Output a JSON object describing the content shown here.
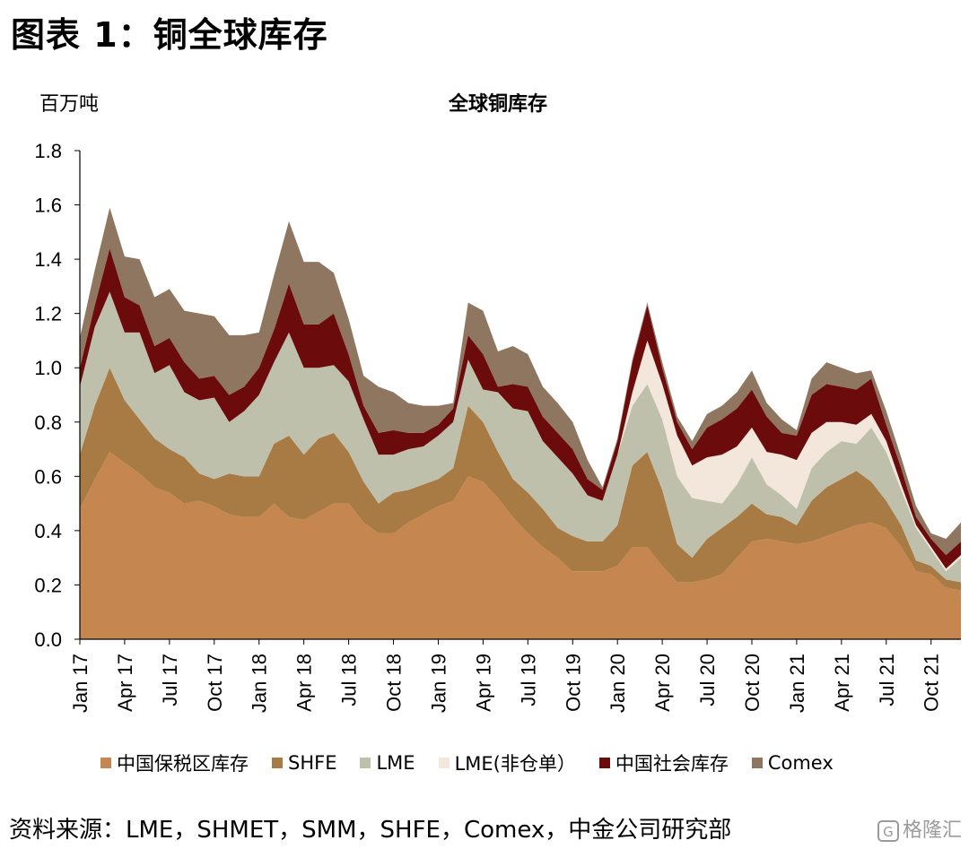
{
  "header": {
    "figure_title": "图表 1：铜全球库存",
    "unit_label": "百万吨",
    "chart_title": "全球铜库存"
  },
  "legend": [
    {
      "label": "中国保税区库存",
      "color": "#C5864F"
    },
    {
      "label": "SHFE",
      "color": "#A87A44"
    },
    {
      "label": "LME",
      "color": "#BFC0AC"
    },
    {
      "label": "LME(非仓单）",
      "color": "#F2E7DA"
    },
    {
      "label": "中国社会库存",
      "color": "#6B0B0B"
    },
    {
      "label": "Comex",
      "color": "#8E7660"
    }
  ],
  "footer": {
    "source": "资料来源：LME，SHMET，SMM，SHFE，Comex，中金公司研究部",
    "watermark": "格隆汇"
  },
  "chart_data": {
    "type": "area",
    "stacked": true,
    "title": "全球铜库存",
    "ylabel": "百万吨",
    "ylim": [
      0,
      1.8
    ],
    "yticks": [
      0.0,
      0.2,
      0.4,
      0.6,
      0.8,
      1.0,
      1.2,
      1.4,
      1.6,
      1.8
    ],
    "ytick_labels": [
      "0.0",
      "0.2",
      "0.4",
      "0.6",
      "0.8",
      "1.0",
      "1.2",
      "1.4",
      "1.6",
      "1.8"
    ],
    "x_tick_labels": [
      "Jan 17",
      "Apr 17",
      "Jul 17",
      "Oct 17",
      "Jan 18",
      "Apr 18",
      "Jul 18",
      "Oct 18",
      "Jan 19",
      "Apr 19",
      "Jul 19",
      "Oct 19",
      "Jan 20",
      "Apr 20",
      "Jul 20",
      "Oct 20",
      "Jan 21",
      "Apr 21",
      "Jul 21",
      "Oct 21"
    ],
    "x_start": "2017-01",
    "x_end": "2021-12",
    "grid": false,
    "legend_position": "bottom",
    "series": [
      {
        "name": "中国保税区库存",
        "color": "#C5864F",
        "values": [
          0.48,
          0.59,
          0.69,
          0.65,
          0.61,
          0.56,
          0.54,
          0.5,
          0.51,
          0.49,
          0.46,
          0.45,
          0.45,
          0.5,
          0.45,
          0.44,
          0.47,
          0.5,
          0.5,
          0.43,
          0.39,
          0.39,
          0.43,
          0.46,
          0.49,
          0.51,
          0.6,
          0.58,
          0.52,
          0.45,
          0.39,
          0.34,
          0.3,
          0.25,
          0.25,
          0.25,
          0.27,
          0.34,
          0.34,
          0.27,
          0.21,
          0.21,
          0.22,
          0.24,
          0.3,
          0.36,
          0.37,
          0.36,
          0.35,
          0.36,
          0.38,
          0.4,
          0.42,
          0.43,
          0.41,
          0.34,
          0.25,
          0.24,
          0.19,
          0.18
        ]
      },
      {
        "name": "SHFE",
        "color": "#A87A44",
        "values": [
          0.2,
          0.27,
          0.31,
          0.23,
          0.2,
          0.18,
          0.16,
          0.17,
          0.1,
          0.1,
          0.15,
          0.15,
          0.15,
          0.22,
          0.3,
          0.24,
          0.27,
          0.26,
          0.19,
          0.15,
          0.11,
          0.15,
          0.12,
          0.11,
          0.1,
          0.12,
          0.26,
          0.22,
          0.17,
          0.14,
          0.15,
          0.14,
          0.11,
          0.13,
          0.11,
          0.11,
          0.15,
          0.3,
          0.35,
          0.28,
          0.14,
          0.09,
          0.15,
          0.17,
          0.15,
          0.14,
          0.09,
          0.09,
          0.07,
          0.15,
          0.18,
          0.19,
          0.2,
          0.15,
          0.1,
          0.08,
          0.04,
          0.03,
          0.03,
          0.03
        ]
      },
      {
        "name": "LME",
        "color": "#BFC0AC",
        "values": [
          0.25,
          0.29,
          0.28,
          0.25,
          0.32,
          0.24,
          0.31,
          0.24,
          0.27,
          0.3,
          0.19,
          0.24,
          0.3,
          0.3,
          0.38,
          0.32,
          0.26,
          0.25,
          0.26,
          0.23,
          0.18,
          0.14,
          0.15,
          0.14,
          0.16,
          0.17,
          0.17,
          0.12,
          0.22,
          0.26,
          0.3,
          0.25,
          0.26,
          0.23,
          0.17,
          0.15,
          0.26,
          0.22,
          0.25,
          0.26,
          0.25,
          0.22,
          0.14,
          0.09,
          0.12,
          0.17,
          0.11,
          0.08,
          0.06,
          0.12,
          0.13,
          0.14,
          0.1,
          0.2,
          0.18,
          0.13,
          0.12,
          0.06,
          0.03,
          0.09
        ]
      },
      {
        "name": "LME(非仓单）",
        "color": "#F2E7DA",
        "values": [
          0.0,
          0.0,
          0.0,
          0.0,
          0.0,
          0.0,
          0.0,
          0.0,
          0.0,
          0.0,
          0.0,
          0.0,
          0.0,
          0.0,
          0.0,
          0.0,
          0.0,
          0.0,
          0.0,
          0.0,
          0.0,
          0.0,
          0.0,
          0.0,
          0.0,
          0.0,
          0.0,
          0.0,
          0.0,
          0.0,
          0.0,
          0.0,
          0.0,
          0.0,
          0.0,
          0.0,
          0.0,
          0.05,
          0.16,
          0.13,
          0.15,
          0.12,
          0.16,
          0.18,
          0.14,
          0.11,
          0.12,
          0.15,
          0.18,
          0.13,
          0.11,
          0.07,
          0.07,
          0.05,
          0.04,
          0.02,
          0.01,
          0.01,
          0.01,
          0.01
        ]
      },
      {
        "name": "中国社会库存",
        "color": "#6B0B0B",
        "values": [
          0.07,
          0.08,
          0.16,
          0.13,
          0.1,
          0.1,
          0.1,
          0.11,
          0.08,
          0.08,
          0.1,
          0.09,
          0.1,
          0.12,
          0.18,
          0.16,
          0.16,
          0.19,
          0.1,
          0.05,
          0.08,
          0.09,
          0.06,
          0.05,
          0.04,
          0.05,
          0.09,
          0.13,
          0.02,
          0.09,
          0.09,
          0.09,
          0.09,
          0.09,
          0.06,
          0.04,
          0.05,
          0.11,
          0.13,
          0.06,
          0.05,
          0.06,
          0.11,
          0.13,
          0.14,
          0.14,
          0.13,
          0.08,
          0.09,
          0.14,
          0.14,
          0.13,
          0.13,
          0.13,
          0.06,
          0.06,
          0.03,
          0.03,
          0.05,
          0.05
        ]
      },
      {
        "name": "Comex",
        "color": "#8E7660",
        "values": [
          0.11,
          0.13,
          0.15,
          0.15,
          0.17,
          0.18,
          0.18,
          0.19,
          0.24,
          0.22,
          0.22,
          0.19,
          0.13,
          0.2,
          0.23,
          0.23,
          0.23,
          0.15,
          0.13,
          0.11,
          0.17,
          0.14,
          0.11,
          0.1,
          0.07,
          0.02,
          0.12,
          0.16,
          0.13,
          0.14,
          0.12,
          0.11,
          0.11,
          0.1,
          0.07,
          0.01,
          0.01,
          0.01,
          0.01,
          0.02,
          0.02,
          0.03,
          0.05,
          0.05,
          0.06,
          0.07,
          0.05,
          0.05,
          0.02,
          0.06,
          0.08,
          0.07,
          0.06,
          0.03,
          0.05,
          0.04,
          0.04,
          0.02,
          0.06,
          0.07
        ]
      }
    ]
  }
}
